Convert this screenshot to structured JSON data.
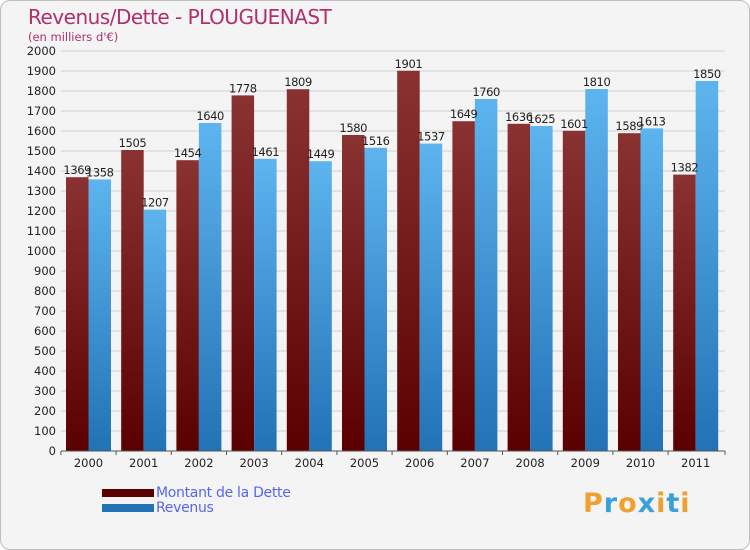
{
  "colors": {
    "title": "#b0306a",
    "legend_text": "#5566ee",
    "debt_top": "#8a3232",
    "debt_bottom": "#5a0000",
    "revenue_top": "#5db4ee",
    "revenue_bottom": "#2272b6",
    "axis_text": "#222222",
    "grid": "#d0d0d0"
  },
  "brand": {
    "letters": [
      "P",
      "r",
      "o",
      "x",
      "i",
      "t",
      "i"
    ],
    "letter_colors": [
      "#f0a030",
      "#3aa0d8",
      "#f0a030",
      "#3aa0d8",
      "#f0a030",
      "#3aa0d8",
      "#f0a030"
    ]
  },
  "chart_data": {
    "type": "bar",
    "title": "Revenus/Dette - PLOUGUENAST",
    "subtitle": "(en milliers d'€)",
    "categories": [
      "2000",
      "2001",
      "2002",
      "2003",
      "2004",
      "2005",
      "2006",
      "2007",
      "2008",
      "2009",
      "2010",
      "2011"
    ],
    "series": [
      {
        "name": "Montant de la Dette",
        "values": [
          1369,
          1505,
          1454,
          1778,
          1809,
          1580,
          1901,
          1649,
          1636,
          1601,
          1589,
          1382
        ],
        "labels": [
          "1369",
          "1505",
          "1454",
          "1778",
          "1809",
          "1580",
          "1901",
          "1649",
          "1636",
          "1601",
          "1589",
          "1382"
        ]
      },
      {
        "name": "Revenus",
        "values": [
          1358,
          1207,
          1640,
          1461,
          1449,
          1516,
          1537,
          1760,
          1625,
          1810,
          1613,
          1850
        ],
        "labels": [
          "1358",
          "1207",
          "1640",
          "1461",
          "1449",
          "1516",
          "1537",
          "1760",
          "1625",
          "1810",
          "1613",
          "1850"
        ]
      }
    ],
    "ylim": [
      0,
      2000
    ],
    "yticks": [
      "0",
      "100",
      "200",
      "300",
      "400",
      "500",
      "600",
      "700",
      "800",
      "900",
      "1000",
      "1100",
      "1200",
      "1300",
      "1400",
      "1500",
      "1600",
      "1700",
      "1800",
      "1900",
      "2000"
    ],
    "grid": true,
    "legend": "bottom-left"
  }
}
